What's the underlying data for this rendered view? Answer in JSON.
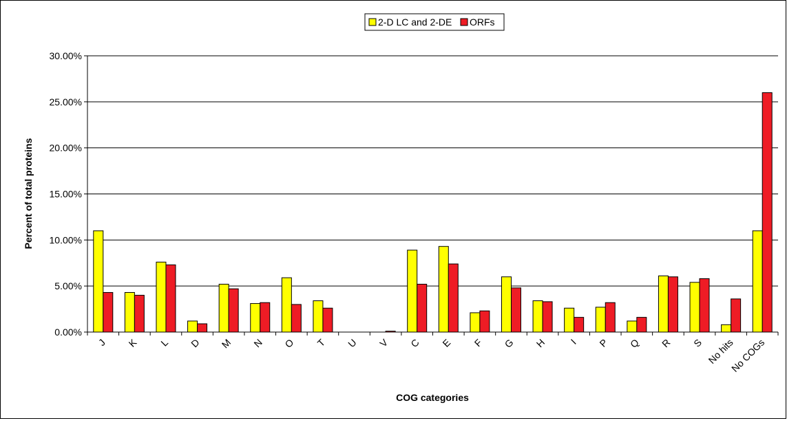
{
  "chart_data": {
    "type": "bar",
    "title": "",
    "xlabel": "COG categories",
    "ylabel": "Percent of total proteins",
    "ylim": [
      0,
      0.3
    ],
    "yticks": [
      0,
      0.05,
      0.1,
      0.15,
      0.2,
      0.25,
      0.3
    ],
    "ytick_labels": [
      "0.00%",
      "5.00%",
      "10.00%",
      "15.00%",
      "20.00%",
      "25.00%",
      "30.00%"
    ],
    "grid": "horizontal",
    "legend_position": "top-center",
    "categories": [
      "J",
      "K",
      "L",
      "D",
      "M",
      "N",
      "O",
      "T",
      "U",
      "V",
      "C",
      "E",
      "F",
      "G",
      "H",
      "I",
      "P",
      "Q",
      "R",
      "S",
      "No hits",
      "No COGs"
    ],
    "series": [
      {
        "name": "2-D LC and 2-DE",
        "color": "#ffff00",
        "values": [
          0.11,
          0.043,
          0.076,
          0.012,
          0.052,
          0.031,
          0.059,
          0.034,
          0.0,
          0.0,
          0.089,
          0.093,
          0.021,
          0.06,
          0.034,
          0.026,
          0.027,
          0.012,
          0.061,
          0.054,
          0.008,
          0.11
        ]
      },
      {
        "name": "ORFs",
        "color": "#ee1c25",
        "values": [
          0.043,
          0.04,
          0.073,
          0.009,
          0.047,
          0.032,
          0.03,
          0.026,
          0.0,
          0.001,
          0.052,
          0.074,
          0.023,
          0.048,
          0.033,
          0.016,
          0.032,
          0.016,
          0.06,
          0.058,
          0.036,
          0.26
        ]
      }
    ]
  }
}
